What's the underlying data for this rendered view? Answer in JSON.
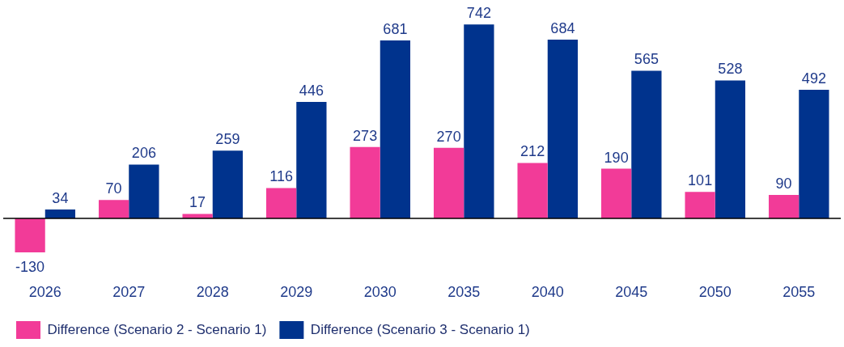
{
  "chart_data": {
    "type": "bar",
    "categories": [
      "2026",
      "2027",
      "2028",
      "2029",
      "2030",
      "2035",
      "2040",
      "2045",
      "2050",
      "2055"
    ],
    "series": [
      {
        "name": "Difference (Scenario 2 - Scenario 1)",
        "color": "#f23b98",
        "values": [
          -130,
          70,
          17,
          116,
          273,
          270,
          212,
          190,
          101,
          90
        ]
      },
      {
        "name": "Difference (Scenario 3 - Scenario 1)",
        "color": "#00338d",
        "values": [
          34,
          206,
          259,
          446,
          681,
          742,
          684,
          565,
          528,
          492
        ]
      }
    ],
    "data_labels": true,
    "legend": "bottom left",
    "grid": false
  }
}
